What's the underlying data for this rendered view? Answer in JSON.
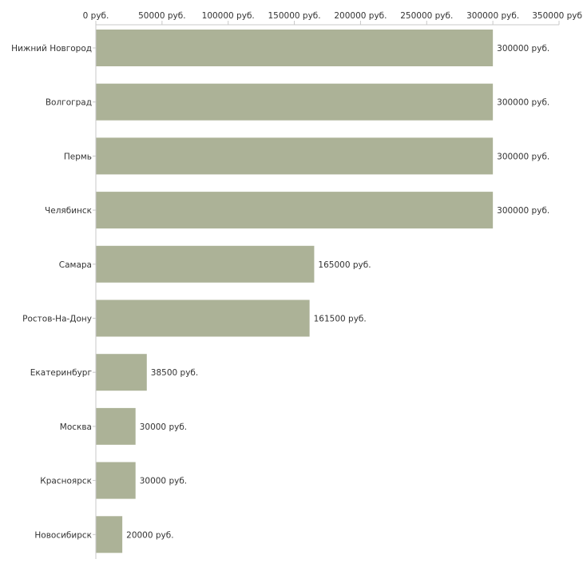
{
  "chart_data": {
    "type": "bar",
    "orientation": "horizontal",
    "title": "",
    "xlabel": "",
    "ylabel": "",
    "unit": "руб.",
    "bar_color": "#acb297",
    "xlim": [
      0,
      350000
    ],
    "x_ticks": [
      0,
      50000,
      100000,
      150000,
      200000,
      250000,
      300000,
      350000
    ],
    "x_tick_labels": [
      "0 руб.",
      "50000 руб.",
      "100000 руб.",
      "150000 руб.",
      "200000 руб.",
      "250000 руб.",
      "300000 руб.",
      "350000 руб"
    ],
    "axis_position": "top",
    "grid": false,
    "legend": "none",
    "categories": [
      "Нижний Новгород",
      "Волгоград",
      "Пермь",
      "Челябинск",
      "Самара",
      "Ростов-На-Дону",
      "Екатеринбург",
      "Москва",
      "Красноярск",
      "Новосибирск"
    ],
    "values": [
      300000,
      300000,
      300000,
      300000,
      165000,
      161500,
      38500,
      30000,
      30000,
      20000
    ],
    "data_labels": [
      "300000 руб.",
      "300000 руб.",
      "300000 руб.",
      "300000 руб.",
      "165000 руб.",
      "161500 руб.",
      "38500 руб.",
      "30000 руб.",
      "30000 руб.",
      "20000 руб."
    ]
  }
}
